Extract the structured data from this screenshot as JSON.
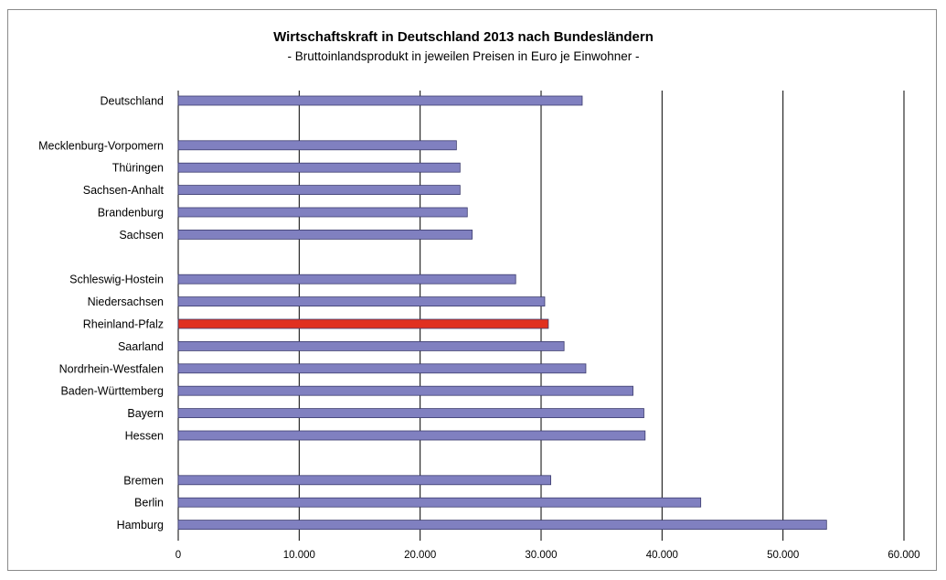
{
  "chart_data": {
    "type": "bar",
    "orientation": "horizontal",
    "title": "Wirtschaftskraft in Deutschland 2013 nach Bundesländern",
    "subtitle": "- Bruttoinlandsprodukt in jeweilen Preisen in Euro je Einwohner -",
    "xlim": [
      0,
      60000
    ],
    "x_ticks": [
      "0",
      "10.000",
      "20.000",
      "30.000",
      "40.000",
      "50.000",
      "60.000"
    ],
    "grid": "vertical",
    "legend": "none",
    "bar_color": "#8080c0",
    "highlight_color": "#e03020",
    "categories": [
      "Deutschland",
      "",
      "Mecklenburg-Vorpomern",
      "Thüringen",
      "Sachsen-Anhalt",
      "Brandenburg",
      "Sachsen",
      "",
      "Schleswig-Hostein",
      "Niedersachsen",
      "Rheinland-Pfalz",
      "Saarland",
      "Nordrhein-Westfalen",
      "Baden-Württemberg",
      "Bayern",
      "Hessen",
      "",
      "Bremen",
      "Berlin",
      "Hamburg"
    ],
    "values": [
      33400,
      null,
      23000,
      23300,
      23300,
      23900,
      24300,
      null,
      27900,
      30300,
      30600,
      31900,
      33700,
      37600,
      38500,
      38600,
      null,
      30800,
      43200,
      53600
    ],
    "highlight": [
      "Rheinland-Pfalz"
    ]
  }
}
